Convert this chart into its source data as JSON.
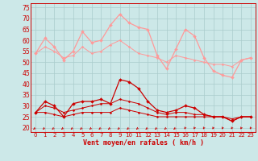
{
  "x": [
    0,
    1,
    2,
    3,
    4,
    5,
    6,
    7,
    8,
    9,
    10,
    11,
    12,
    13,
    14,
    15,
    16,
    17,
    18,
    19,
    20,
    21,
    22,
    23
  ],
  "series": [
    {
      "name": "rafales_high",
      "color": "#ff9999",
      "linewidth": 0.9,
      "markersize": 2.0,
      "values": [
        54,
        61,
        57,
        51,
        55,
        64,
        59,
        60,
        67,
        72,
        68,
        66,
        65,
        53,
        47,
        56,
        65,
        62,
        52,
        46,
        44,
        43,
        51,
        52
      ]
    },
    {
      "name": "rafales_mid",
      "color": "#ff9999",
      "linewidth": 0.7,
      "markersize": 1.5,
      "values": [
        54,
        57,
        55,
        52,
        53,
        57,
        54,
        55,
        58,
        60,
        57,
        54,
        53,
        52,
        50,
        53,
        52,
        51,
        50,
        49,
        49,
        48,
        51,
        52
      ]
    },
    {
      "name": "moyen_high",
      "color": "#cc0000",
      "linewidth": 0.9,
      "markersize": 2.0,
      "values": [
        27,
        32,
        30,
        25,
        31,
        32,
        32,
        33,
        31,
        42,
        41,
        38,
        32,
        28,
        27,
        28,
        30,
        29,
        26,
        25,
        25,
        23,
        25,
        25
      ]
    },
    {
      "name": "moyen_mid",
      "color": "#cc0000",
      "linewidth": 0.7,
      "markersize": 1.5,
      "values": [
        27,
        30,
        29,
        27,
        28,
        29,
        30,
        31,
        31,
        33,
        32,
        31,
        29,
        27,
        26,
        27,
        27,
        26,
        26,
        25,
        25,
        24,
        25,
        25
      ]
    },
    {
      "name": "moyen_low",
      "color": "#cc0000",
      "linewidth": 0.7,
      "markersize": 1.5,
      "values": [
        27,
        27,
        26,
        25,
        26,
        27,
        27,
        27,
        27,
        29,
        28,
        27,
        26,
        25,
        25,
        25,
        25,
        25,
        25,
        25,
        25,
        23,
        25,
        25
      ]
    }
  ],
  "xlabel": "Vent moyen/en rafales ( km/h )",
  "yticks": [
    20,
    25,
    30,
    35,
    40,
    45,
    50,
    55,
    60,
    65,
    70,
    75
  ],
  "ylim": [
    18,
    77
  ],
  "xlim": [
    -0.5,
    23.5
  ],
  "bg_color": "#cce8e8",
  "grid_color": "#aacccc",
  "line_color": "#cc0000",
  "xlabel_fontsize": 6.0,
  "ytick_fontsize": 5.5,
  "xtick_fontsize": 5.0
}
